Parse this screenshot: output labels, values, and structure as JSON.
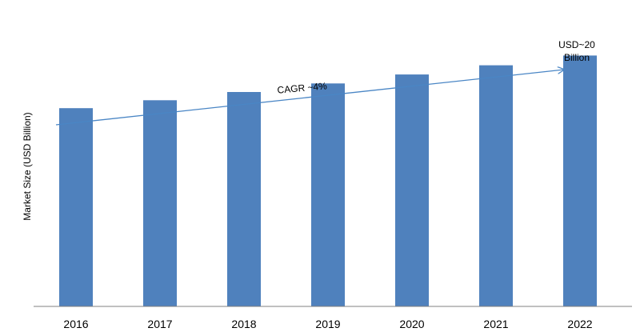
{
  "chart_data": {
    "type": "bar",
    "categories": [
      "2016",
      "2017",
      "2018",
      "2019",
      "2020",
      "2021",
      "2022"
    ],
    "values": [
      15.94,
      16.58,
      17.24,
      17.93,
      18.65,
      19.39,
      20.17
    ],
    "xlabel": "",
    "ylabel": "Market Size (USD Billion)",
    "ylim": [
      0,
      22
    ],
    "grid": false,
    "legend": "none",
    "bar_color": "#4f81bd",
    "axis_color": "#808080",
    "arrow_color": "#4a86c5",
    "annotations": {
      "cagr": "CAGR ~4%",
      "end_value_line1": "USD~20",
      "end_value_line2": "Billion"
    }
  }
}
